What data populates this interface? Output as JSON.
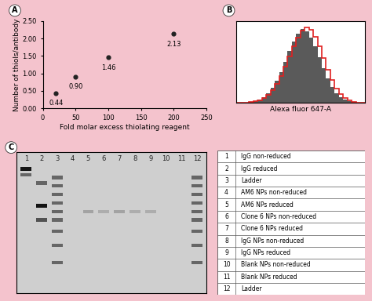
{
  "chart_data": [
    {
      "panel": "A",
      "type": "scatter",
      "x_label": "Fold molar excess thiolating reagent",
      "y_label": "Number of thiols/antibody",
      "x": [
        20,
        50,
        100,
        200
      ],
      "values": [
        0.44,
        0.9,
        1.46,
        2.13
      ],
      "value_labels": [
        "0.44",
        "0.90",
        "1.46",
        "2.13"
      ],
      "data_labels": true,
      "color": "#222222",
      "marker": "circle",
      "xlim": [
        0,
        250
      ],
      "xticks": [
        0,
        50,
        100,
        150,
        200,
        250
      ],
      "ylim": [
        0,
        2.5
      ],
      "yticks": [
        {
          "value": 0,
          "label": "0.00"
        },
        {
          "value": 0.5,
          "label": "0.50"
        },
        {
          "value": 1.0,
          "label": "1.00"
        },
        {
          "value": 1.5,
          "label": "1.50"
        },
        {
          "value": 2.0,
          "label": "2.00"
        },
        {
          "value": 2.5,
          "label": "2.50"
        }
      ]
    },
    {
      "panel": "B",
      "type": "histogram",
      "x_label": "Alexa fluor 647-A",
      "tick_labels": false,
      "bins": [
        0,
        1,
        2,
        3,
        4,
        5,
        6,
        7,
        8,
        9,
        10,
        11,
        12,
        13,
        14,
        15,
        16,
        17,
        18,
        19,
        20,
        21,
        22,
        23,
        24,
        25,
        26,
        27,
        28,
        29,
        30
      ],
      "xlim": [
        0,
        30
      ],
      "ylim": [
        0,
        105
      ],
      "series": [
        {
          "type": "area",
          "color": "#5a5a5a",
          "values": [
            0,
            0,
            0,
            1,
            2,
            4,
            7,
            12,
            19,
            28,
            39,
            52,
            66,
            79,
            89,
            95,
            92,
            84,
            72,
            58,
            44,
            31,
            20,
            12,
            7,
            4,
            2,
            1,
            0,
            0
          ]
        },
        {
          "type": "step",
          "color": "#e02020",
          "values": [
            0,
            0,
            0,
            1,
            2,
            3,
            6,
            10,
            16,
            24,
            34,
            46,
            59,
            72,
            84,
            93,
            97,
            94,
            85,
            72,
            57,
            42,
            29,
            18,
            11,
            6,
            3,
            1,
            0,
            0
          ]
        }
      ]
    }
  ],
  "gel": {
    "panel": "C",
    "lanes": [
      "1",
      "2",
      "3",
      "4",
      "5",
      "6",
      "7",
      "8",
      "9",
      "10",
      "11",
      "12"
    ],
    "bands": [
      {
        "lane": 1,
        "migration": [
          12,
          16
        ],
        "intensity": [
          0.9,
          0.5
        ]
      },
      {
        "lane": 2,
        "migration": [
          22,
          38,
          48
        ],
        "intensity": [
          0.5,
          0.9,
          0.6
        ]
      },
      {
        "lane": 3,
        "migration": [
          18,
          24,
          30,
          36,
          42,
          48,
          56,
          66,
          78
        ],
        "intensity": [
          0.5,
          0.5,
          0.5,
          0.5,
          0.5,
          0.5,
          0.5,
          0.5,
          0.5
        ]
      },
      {
        "lane": 5,
        "migration": [
          42
        ],
        "intensity": [
          0.2
        ]
      },
      {
        "lane": 6,
        "migration": [
          42
        ],
        "intensity": [
          0.15
        ]
      },
      {
        "lane": 7,
        "migration": [
          42
        ],
        "intensity": [
          0.2
        ]
      },
      {
        "lane": 8,
        "migration": [
          42
        ],
        "intensity": [
          0.15
        ]
      },
      {
        "lane": 9,
        "migration": [
          42
        ],
        "intensity": [
          0.15
        ]
      },
      {
        "lane": 12,
        "migration": [
          18,
          24,
          30,
          36,
          42,
          48,
          56,
          66,
          78
        ],
        "intensity": [
          0.5,
          0.5,
          0.5,
          0.5,
          0.5,
          0.5,
          0.5,
          0.5,
          0.5
        ]
      }
    ]
  },
  "table": {
    "rows": [
      [
        "1",
        "IgG non-reduced"
      ],
      [
        "2",
        "IgG reduced"
      ],
      [
        "3",
        "Ladder"
      ],
      [
        "4",
        "AM6 NPs non-reduced"
      ],
      [
        "5",
        "AM6 NPs reduced"
      ],
      [
        "6",
        "Clone 6 NPs non-reduced"
      ],
      [
        "7",
        "Clone 6 NPs reduced"
      ],
      [
        "8",
        "IgG NPs non-reduced"
      ],
      [
        "9",
        "IgG NPs reduced"
      ],
      [
        "10",
        "Blank NPs non-reduced"
      ],
      [
        "11",
        "Blank NPs reduced"
      ],
      [
        "12",
        "Ladder"
      ]
    ]
  }
}
